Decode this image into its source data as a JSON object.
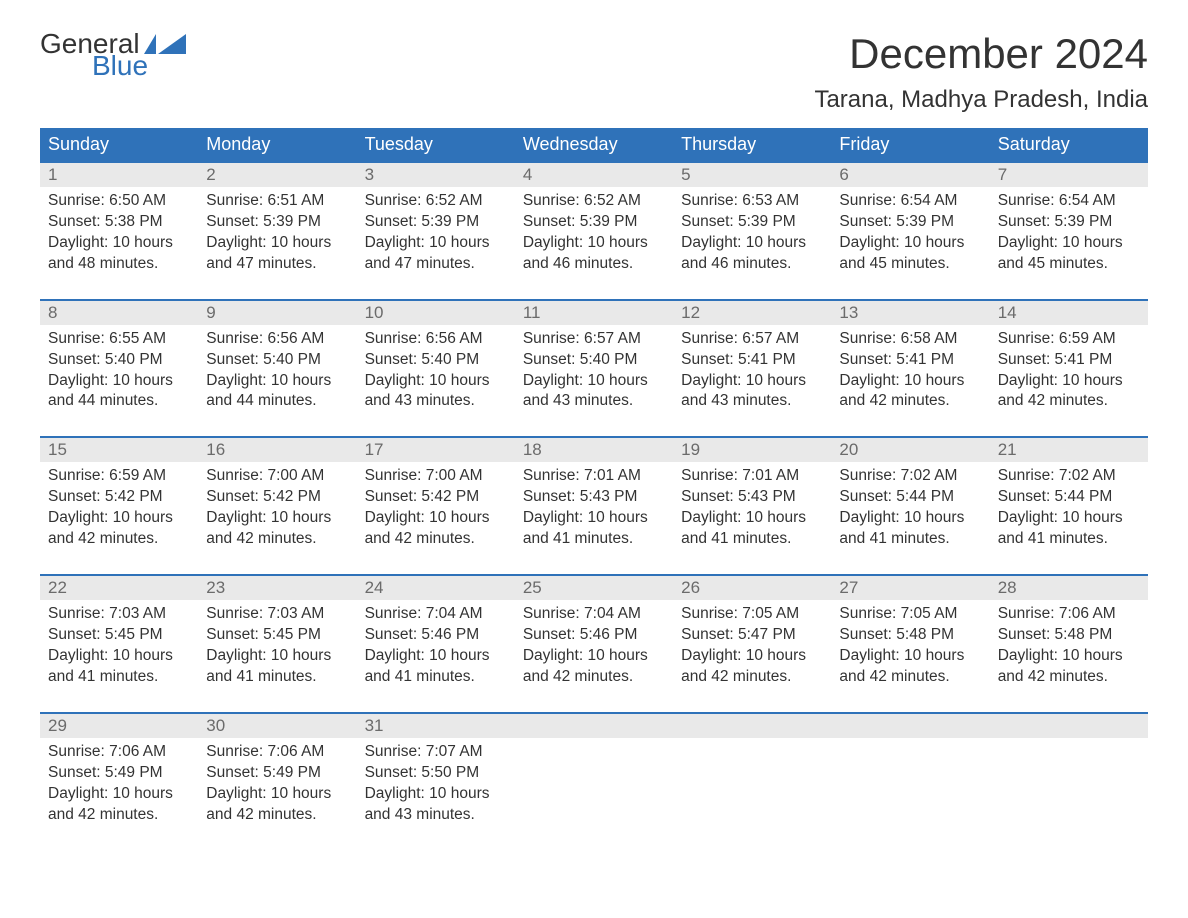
{
  "colors": {
    "header_bg": "#2f72b9",
    "header_text": "#ffffff",
    "daynum_bg": "#e9e9e9",
    "daynum_text": "#6b6b6b",
    "body_text": "#333333",
    "week_border": "#2f72b9",
    "page_bg": "#ffffff",
    "logo_blue": "#2f72b9"
  },
  "typography": {
    "title_fontsize": 42,
    "location_fontsize": 24,
    "header_fontsize": 18,
    "daynum_fontsize": 17,
    "body_fontsize": 15.5,
    "logo_fontsize": 28,
    "font_family": "Arial"
  },
  "logo": {
    "line1": "General",
    "line2": "Blue"
  },
  "title": "December 2024",
  "location": "Tarana, Madhya Pradesh, India",
  "day_headers": [
    "Sunday",
    "Monday",
    "Tuesday",
    "Wednesday",
    "Thursday",
    "Friday",
    "Saturday"
  ],
  "weeks": [
    [
      {
        "num": "1",
        "sunrise": "Sunrise: 6:50 AM",
        "sunset": "Sunset: 5:38 PM",
        "dl1": "Daylight: 10 hours",
        "dl2": "and 48 minutes."
      },
      {
        "num": "2",
        "sunrise": "Sunrise: 6:51 AM",
        "sunset": "Sunset: 5:39 PM",
        "dl1": "Daylight: 10 hours",
        "dl2": "and 47 minutes."
      },
      {
        "num": "3",
        "sunrise": "Sunrise: 6:52 AM",
        "sunset": "Sunset: 5:39 PM",
        "dl1": "Daylight: 10 hours",
        "dl2": "and 47 minutes."
      },
      {
        "num": "4",
        "sunrise": "Sunrise: 6:52 AM",
        "sunset": "Sunset: 5:39 PM",
        "dl1": "Daylight: 10 hours",
        "dl2": "and 46 minutes."
      },
      {
        "num": "5",
        "sunrise": "Sunrise: 6:53 AM",
        "sunset": "Sunset: 5:39 PM",
        "dl1": "Daylight: 10 hours",
        "dl2": "and 46 minutes."
      },
      {
        "num": "6",
        "sunrise": "Sunrise: 6:54 AM",
        "sunset": "Sunset: 5:39 PM",
        "dl1": "Daylight: 10 hours",
        "dl2": "and 45 minutes."
      },
      {
        "num": "7",
        "sunrise": "Sunrise: 6:54 AM",
        "sunset": "Sunset: 5:39 PM",
        "dl1": "Daylight: 10 hours",
        "dl2": "and 45 minutes."
      }
    ],
    [
      {
        "num": "8",
        "sunrise": "Sunrise: 6:55 AM",
        "sunset": "Sunset: 5:40 PM",
        "dl1": "Daylight: 10 hours",
        "dl2": "and 44 minutes."
      },
      {
        "num": "9",
        "sunrise": "Sunrise: 6:56 AM",
        "sunset": "Sunset: 5:40 PM",
        "dl1": "Daylight: 10 hours",
        "dl2": "and 44 minutes."
      },
      {
        "num": "10",
        "sunrise": "Sunrise: 6:56 AM",
        "sunset": "Sunset: 5:40 PM",
        "dl1": "Daylight: 10 hours",
        "dl2": "and 43 minutes."
      },
      {
        "num": "11",
        "sunrise": "Sunrise: 6:57 AM",
        "sunset": "Sunset: 5:40 PM",
        "dl1": "Daylight: 10 hours",
        "dl2": "and 43 minutes."
      },
      {
        "num": "12",
        "sunrise": "Sunrise: 6:57 AM",
        "sunset": "Sunset: 5:41 PM",
        "dl1": "Daylight: 10 hours",
        "dl2": "and 43 minutes."
      },
      {
        "num": "13",
        "sunrise": "Sunrise: 6:58 AM",
        "sunset": "Sunset: 5:41 PM",
        "dl1": "Daylight: 10 hours",
        "dl2": "and 42 minutes."
      },
      {
        "num": "14",
        "sunrise": "Sunrise: 6:59 AM",
        "sunset": "Sunset: 5:41 PM",
        "dl1": "Daylight: 10 hours",
        "dl2": "and 42 minutes."
      }
    ],
    [
      {
        "num": "15",
        "sunrise": "Sunrise: 6:59 AM",
        "sunset": "Sunset: 5:42 PM",
        "dl1": "Daylight: 10 hours",
        "dl2": "and 42 minutes."
      },
      {
        "num": "16",
        "sunrise": "Sunrise: 7:00 AM",
        "sunset": "Sunset: 5:42 PM",
        "dl1": "Daylight: 10 hours",
        "dl2": "and 42 minutes."
      },
      {
        "num": "17",
        "sunrise": "Sunrise: 7:00 AM",
        "sunset": "Sunset: 5:42 PM",
        "dl1": "Daylight: 10 hours",
        "dl2": "and 42 minutes."
      },
      {
        "num": "18",
        "sunrise": "Sunrise: 7:01 AM",
        "sunset": "Sunset: 5:43 PM",
        "dl1": "Daylight: 10 hours",
        "dl2": "and 41 minutes."
      },
      {
        "num": "19",
        "sunrise": "Sunrise: 7:01 AM",
        "sunset": "Sunset: 5:43 PM",
        "dl1": "Daylight: 10 hours",
        "dl2": "and 41 minutes."
      },
      {
        "num": "20",
        "sunrise": "Sunrise: 7:02 AM",
        "sunset": "Sunset: 5:44 PM",
        "dl1": "Daylight: 10 hours",
        "dl2": "and 41 minutes."
      },
      {
        "num": "21",
        "sunrise": "Sunrise: 7:02 AM",
        "sunset": "Sunset: 5:44 PM",
        "dl1": "Daylight: 10 hours",
        "dl2": "and 41 minutes."
      }
    ],
    [
      {
        "num": "22",
        "sunrise": "Sunrise: 7:03 AM",
        "sunset": "Sunset: 5:45 PM",
        "dl1": "Daylight: 10 hours",
        "dl2": "and 41 minutes."
      },
      {
        "num": "23",
        "sunrise": "Sunrise: 7:03 AM",
        "sunset": "Sunset: 5:45 PM",
        "dl1": "Daylight: 10 hours",
        "dl2": "and 41 minutes."
      },
      {
        "num": "24",
        "sunrise": "Sunrise: 7:04 AM",
        "sunset": "Sunset: 5:46 PM",
        "dl1": "Daylight: 10 hours",
        "dl2": "and 41 minutes."
      },
      {
        "num": "25",
        "sunrise": "Sunrise: 7:04 AM",
        "sunset": "Sunset: 5:46 PM",
        "dl1": "Daylight: 10 hours",
        "dl2": "and 42 minutes."
      },
      {
        "num": "26",
        "sunrise": "Sunrise: 7:05 AM",
        "sunset": "Sunset: 5:47 PM",
        "dl1": "Daylight: 10 hours",
        "dl2": "and 42 minutes."
      },
      {
        "num": "27",
        "sunrise": "Sunrise: 7:05 AM",
        "sunset": "Sunset: 5:48 PM",
        "dl1": "Daylight: 10 hours",
        "dl2": "and 42 minutes."
      },
      {
        "num": "28",
        "sunrise": "Sunrise: 7:06 AM",
        "sunset": "Sunset: 5:48 PM",
        "dl1": "Daylight: 10 hours",
        "dl2": "and 42 minutes."
      }
    ],
    [
      {
        "num": "29",
        "sunrise": "Sunrise: 7:06 AM",
        "sunset": "Sunset: 5:49 PM",
        "dl1": "Daylight: 10 hours",
        "dl2": "and 42 minutes."
      },
      {
        "num": "30",
        "sunrise": "Sunrise: 7:06 AM",
        "sunset": "Sunset: 5:49 PM",
        "dl1": "Daylight: 10 hours",
        "dl2": "and 42 minutes."
      },
      {
        "num": "31",
        "sunrise": "Sunrise: 7:07 AM",
        "sunset": "Sunset: 5:50 PM",
        "dl1": "Daylight: 10 hours",
        "dl2": "and 43 minutes."
      },
      null,
      null,
      null,
      null
    ]
  ]
}
